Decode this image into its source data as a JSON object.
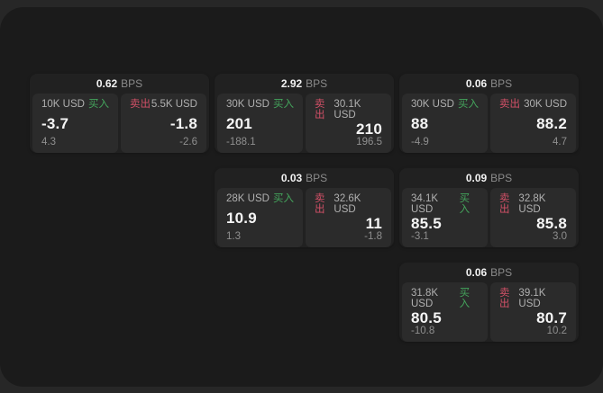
{
  "labels": {
    "bps_suffix": "BPS",
    "buy": "买入",
    "sell": "卖出"
  },
  "colors": {
    "buy_tag": "#44a55c",
    "sell_tag": "#d25067",
    "panel_bg": "#1b1b1b",
    "card_bg": "#212121",
    "subpanel_bg": "#2b2b2b"
  },
  "cards": [
    {
      "col": 1,
      "row": 1,
      "bps": "0.62",
      "buy": {
        "amount": "10K USD",
        "value": "-3.7",
        "delta": "4.3"
      },
      "sell": {
        "amount": "5.5K USD",
        "value": "-1.8",
        "delta": "-2.6"
      }
    },
    {
      "col": 2,
      "row": 1,
      "bps": "2.92",
      "buy": {
        "amount": "30K USD",
        "value": "201",
        "delta": "-188.1"
      },
      "sell": {
        "amount": "30.1K USD",
        "value": "210",
        "delta": "196.5"
      }
    },
    {
      "col": 2,
      "row": 2,
      "bps": "0.03",
      "buy": {
        "amount": "28K USD",
        "value": "10.9",
        "delta": "1.3"
      },
      "sell": {
        "amount": "32.6K USD",
        "value": "11",
        "delta": "-1.8"
      }
    },
    {
      "col": 3,
      "row": 1,
      "bps": "0.06",
      "buy": {
        "amount": "30K USD",
        "value": "88",
        "delta": "-4.9"
      },
      "sell": {
        "amount": "30K USD",
        "value": "88.2",
        "delta": "4.7"
      }
    },
    {
      "col": 3,
      "row": 2,
      "bps": "0.09",
      "buy": {
        "amount": "34.1K USD",
        "value": "85.5",
        "delta": "-3.1"
      },
      "sell": {
        "amount": "32.8K USD",
        "value": "85.8",
        "delta": "3.0"
      }
    },
    {
      "col": 3,
      "row": 3,
      "bps": "0.06",
      "buy": {
        "amount": "31.8K USD",
        "value": "80.5",
        "delta": "-10.8"
      },
      "sell": {
        "amount": "39.1K USD",
        "value": "80.7",
        "delta": "10.2"
      }
    }
  ]
}
